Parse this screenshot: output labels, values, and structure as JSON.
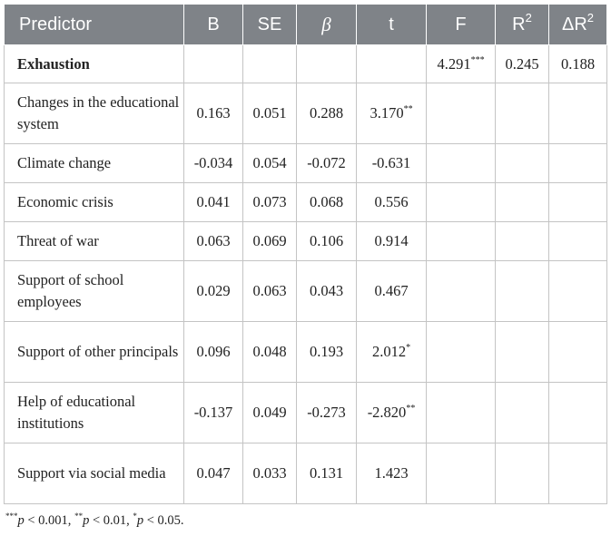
{
  "headers": {
    "predictor": "Predictor",
    "b": "B",
    "se": "SE",
    "beta": "β",
    "t": "t",
    "f": "F",
    "r2_base": "R",
    "r2_sup": "2",
    "dr2_base": "ΔR",
    "dr2_sup": "2"
  },
  "exhaustion": {
    "label": "Exhaustion",
    "f": "4.291",
    "f_sig": "***",
    "r2": "0.245",
    "dr2": "0.188"
  },
  "rows": [
    {
      "predictor": "Changes in the educational system",
      "b": "0.163",
      "se": "0.051",
      "beta": "0.288",
      "t": "3.170",
      "sig": "**"
    },
    {
      "predictor": "Climate change",
      "b": "-0.034",
      "se": "0.054",
      "beta": "-0.072",
      "t": "-0.631",
      "sig": ""
    },
    {
      "predictor": "Economic crisis",
      "b": "0.041",
      "se": "0.073",
      "beta": "0.068",
      "t": "0.556",
      "sig": ""
    },
    {
      "predictor": "Threat of war",
      "b": "0.063",
      "se": "0.069",
      "beta": "0.106",
      "t": "0.914",
      "sig": ""
    },
    {
      "predictor": "Support of school employees",
      "b": "0.029",
      "se": "0.063",
      "beta": "0.043",
      "t": "0.467",
      "sig": ""
    },
    {
      "predictor": "Support of other principals",
      "b": "0.096",
      "se": "0.048",
      "beta": "0.193",
      "t": "2.012",
      "sig": "*"
    },
    {
      "predictor": "Help of educational institutions",
      "b": "-0.137",
      "se": "0.049",
      "beta": "-0.273",
      "t": "-2.820",
      "sig": "**"
    },
    {
      "predictor": "Support via social media",
      "b": "0.047",
      "se": "0.033",
      "beta": "0.131",
      "t": "1.423",
      "sig": ""
    }
  ],
  "footnote": {
    "s1": "***",
    "p1": "p",
    "t1": " < 0.001, ",
    "s2": "**",
    "p2": "p",
    "t2": " < 0.01, ",
    "s3": "*",
    "p3": "p",
    "t3": " < 0.05."
  }
}
